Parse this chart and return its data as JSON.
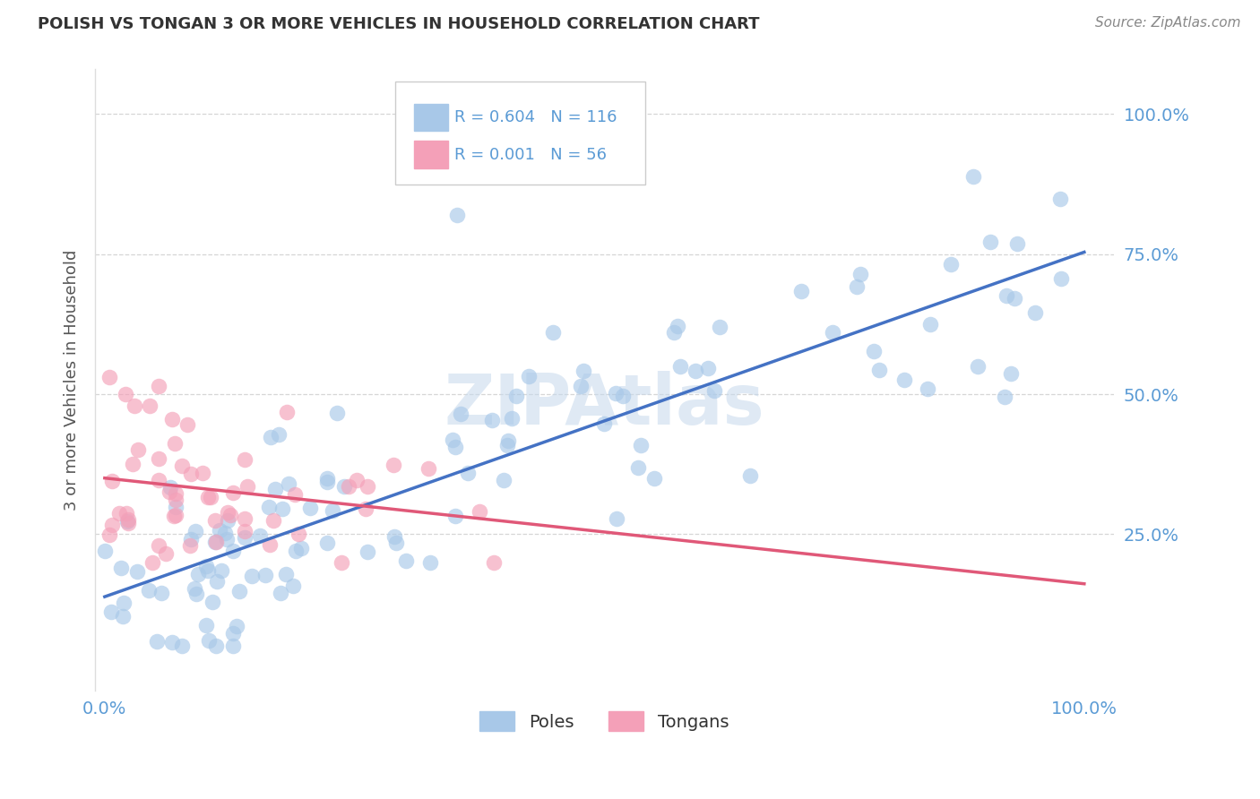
{
  "title": "POLISH VS TONGAN 3 OR MORE VEHICLES IN HOUSEHOLD CORRELATION CHART",
  "source": "Source: ZipAtlas.com",
  "ylabel": "3 or more Vehicles in Household",
  "poles_R": "0.604",
  "poles_N": "116",
  "tongans_R": "0.001",
  "tongans_N": "56",
  "poles_color": "#a8c8e8",
  "tongans_color": "#f4a0b8",
  "poles_line_color": "#4472c4",
  "tongans_line_color": "#e05878",
  "legend_poles": "Poles",
  "legend_tongans": "Tongans",
  "watermark": "ZIPAtlas",
  "background_color": "#ffffff",
  "gridline_color": "#cccccc",
  "tick_color": "#5b9bd5",
  "ylabel_color": "#555555",
  "title_color": "#333333",
  "source_color": "#888888"
}
